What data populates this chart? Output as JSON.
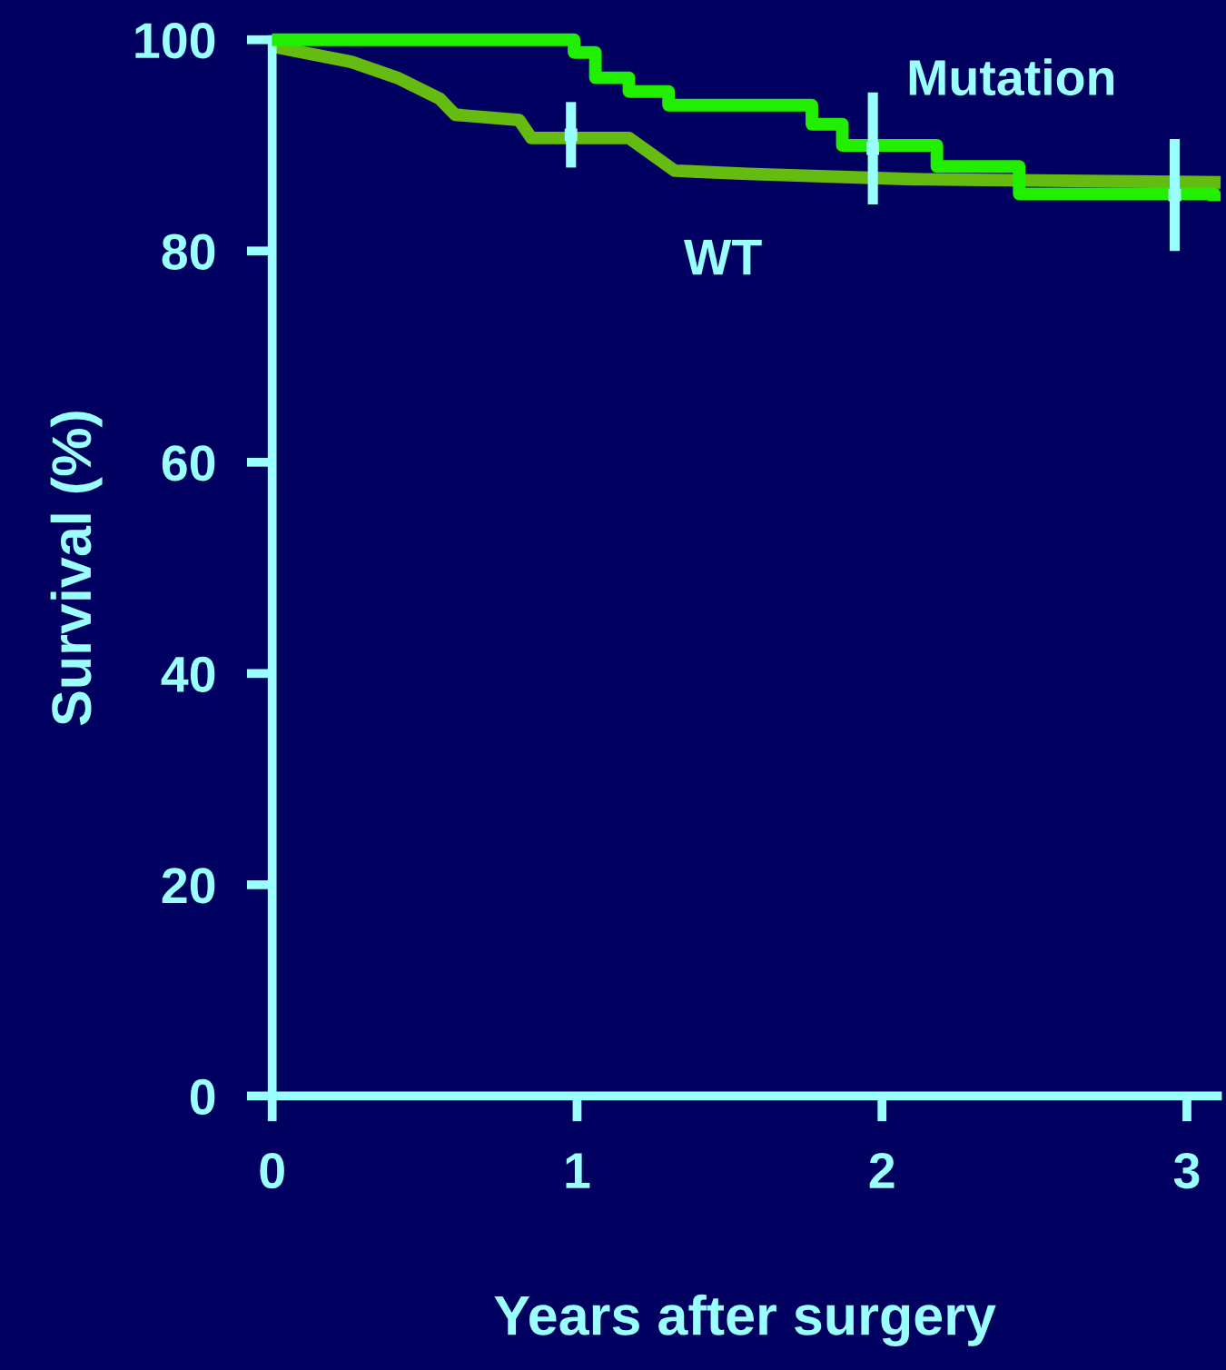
{
  "chart_data": {
    "type": "step",
    "xlabel": "Years after surgery",
    "ylabel": "Survival (%)",
    "xlim": [
      0,
      3.1
    ],
    "ylim": [
      0,
      100
    ],
    "xticks": [
      0,
      1,
      2,
      3
    ],
    "yticks": [
      0,
      20,
      40,
      60,
      80,
      100
    ],
    "grid": false,
    "legend": false,
    "series": [
      {
        "name": "Mutation",
        "color": "#22ee00",
        "x": [
          0.02,
          0.99,
          1.06,
          1.17,
          1.3,
          1.77,
          1.87,
          2.18,
          2.45,
          3.09
        ],
        "values": [
          100,
          98.8,
          96.4,
          95.1,
          93.8,
          92.0,
          90.0,
          88.0,
          85.4,
          85.3
        ]
      },
      {
        "name": "WT",
        "color": "#66bb11",
        "type": "line",
        "x": [
          0.03,
          0.26,
          0.41,
          0.55,
          0.6,
          0.81,
          0.85,
          1.17,
          1.32,
          1.56,
          2.1,
          3.09
        ],
        "values": [
          99.2,
          97.9,
          96.4,
          94.4,
          92.9,
          92.4,
          90.7,
          90.7,
          87.6,
          87.3,
          86.8,
          86.5
        ]
      },
      {
        "type": "scatter",
        "color": "#99ffff",
        "marker": "square",
        "x": [
          0.98,
          1.97,
          2.96
        ],
        "values": [
          91,
          89.7,
          85.3
        ],
        "errors": [
          3.1,
          5.3,
          5.3
        ]
      }
    ]
  }
}
